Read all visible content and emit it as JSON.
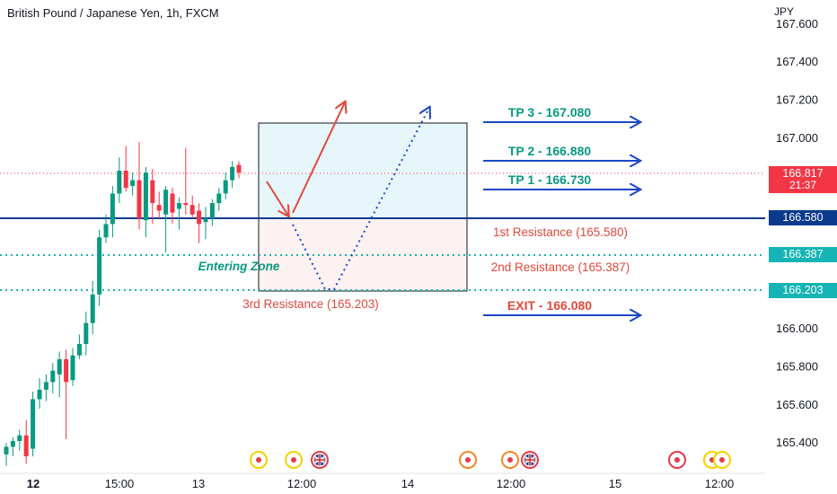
{
  "header": {
    "title": "British Pound / Japanese Yen, 1h, FXCM",
    "currency": "JPY"
  },
  "colors": {
    "up": "#089981",
    "down": "#f23645",
    "trend_line": "#0b3a8c",
    "dotted": "#16b4b4",
    "tp_arrow": "#1a47c8",
    "annotation_red": "#e0483c",
    "zone_fill": "#e6f6fb"
  },
  "chart_data": {
    "type": "candlestick",
    "ylim": [
      165.3,
      167.65
    ],
    "y_ticks": [
      "167.600",
      "167.400",
      "167.200",
      "167.000",
      "166.000",
      "165.800",
      "165.600",
      "165.400"
    ],
    "x_ticks": [
      "12",
      "15:00",
      "13",
      "12:00",
      "14",
      "12:00",
      "15",
      "12:00"
    ],
    "candles": [
      {
        "o": 165.34,
        "h": 165.4,
        "l": 165.28,
        "c": 165.38
      },
      {
        "o": 165.38,
        "h": 165.43,
        "l": 165.33,
        "c": 165.41
      },
      {
        "o": 165.41,
        "h": 165.47,
        "l": 165.36,
        "c": 165.44
      },
      {
        "o": 165.44,
        "h": 165.52,
        "l": 165.29,
        "c": 165.33
      },
      {
        "o": 165.37,
        "h": 165.67,
        "l": 165.33,
        "c": 165.63
      },
      {
        "o": 165.63,
        "h": 165.74,
        "l": 165.58,
        "c": 165.68
      },
      {
        "o": 165.68,
        "h": 165.76,
        "l": 165.62,
        "c": 165.72
      },
      {
        "o": 165.72,
        "h": 165.82,
        "l": 165.66,
        "c": 165.78
      },
      {
        "o": 165.76,
        "h": 165.88,
        "l": 165.64,
        "c": 165.84
      },
      {
        "o": 165.84,
        "h": 165.89,
        "l": 165.42,
        "c": 165.72
      },
      {
        "o": 165.73,
        "h": 165.9,
        "l": 165.7,
        "c": 165.86
      },
      {
        "o": 165.86,
        "h": 165.97,
        "l": 165.84,
        "c": 165.92
      },
      {
        "o": 165.92,
        "h": 166.09,
        "l": 165.86,
        "c": 166.03
      },
      {
        "o": 166.03,
        "h": 166.25,
        "l": 165.97,
        "c": 166.18
      },
      {
        "o": 166.18,
        "h": 166.52,
        "l": 166.12,
        "c": 166.48
      },
      {
        "o": 166.48,
        "h": 166.6,
        "l": 166.45,
        "c": 166.55
      },
      {
        "o": 166.55,
        "h": 166.75,
        "l": 166.48,
        "c": 166.71
      },
      {
        "o": 166.71,
        "h": 166.9,
        "l": 166.66,
        "c": 166.83
      },
      {
        "o": 166.83,
        "h": 166.96,
        "l": 166.72,
        "c": 166.74
      },
      {
        "o": 166.75,
        "h": 166.82,
        "l": 166.7,
        "c": 166.78
      },
      {
        "o": 166.78,
        "h": 166.98,
        "l": 166.52,
        "c": 166.58
      },
      {
        "o": 166.57,
        "h": 166.85,
        "l": 166.48,
        "c": 166.82
      },
      {
        "o": 166.78,
        "h": 166.84,
        "l": 166.55,
        "c": 166.66
      },
      {
        "o": 166.65,
        "h": 166.72,
        "l": 166.58,
        "c": 166.62
      },
      {
        "o": 166.6,
        "h": 166.75,
        "l": 166.4,
        "c": 166.73
      },
      {
        "o": 166.71,
        "h": 166.74,
        "l": 166.55,
        "c": 166.61
      },
      {
        "o": 166.63,
        "h": 166.69,
        "l": 166.52,
        "c": 166.66
      },
      {
        "o": 166.66,
        "h": 166.95,
        "l": 166.6,
        "c": 166.65
      },
      {
        "o": 166.65,
        "h": 166.7,
        "l": 166.58,
        "c": 166.6
      },
      {
        "o": 166.62,
        "h": 166.66,
        "l": 166.45,
        "c": 166.55
      },
      {
        "o": 166.56,
        "h": 166.64,
        "l": 166.47,
        "c": 166.58
      },
      {
        "o": 166.58,
        "h": 166.68,
        "l": 166.54,
        "c": 166.66
      },
      {
        "o": 166.66,
        "h": 166.74,
        "l": 166.62,
        "c": 166.71
      },
      {
        "o": 166.71,
        "h": 166.82,
        "l": 166.68,
        "c": 166.78
      },
      {
        "o": 166.78,
        "h": 166.88,
        "l": 166.74,
        "c": 166.85
      },
      {
        "o": 166.86,
        "h": 166.88,
        "l": 166.79,
        "c": 166.82
      }
    ],
    "current_price": {
      "value": 166.817,
      "label": "166.817",
      "countdown": "21:37"
    },
    "horizontal_levels": [
      {
        "value": 166.58,
        "label": "166.580",
        "style": "solid"
      },
      {
        "value": 166.387,
        "label": "166.387",
        "style": "dotted"
      },
      {
        "value": 166.203,
        "label": "166.203",
        "style": "dotted"
      }
    ],
    "zone": {
      "top": 167.08,
      "mid": 166.58,
      "bottom": 166.203,
      "label": "Entering Zone"
    },
    "resistances": [
      {
        "value": 165.58,
        "text": "1st Resistance (165.580)"
      },
      {
        "value": 165.387,
        "text": "2nd Resistance (165.387)"
      },
      {
        "value": 165.203,
        "text": "3rd Resistance  (165.203)"
      }
    ],
    "targets": [
      {
        "value": 167.08,
        "text": "TP 3 - 167.080"
      },
      {
        "value": 166.88,
        "text": "TP 2 - 166.880"
      },
      {
        "value": 166.73,
        "text": "TP 1 - 166.730"
      },
      {
        "value": 166.08,
        "text": "EXIT - 166.080"
      }
    ],
    "events": [
      {
        "kind": "dot",
        "ring": "#f5d000"
      },
      {
        "kind": "dot",
        "ring": "#f5d000"
      },
      {
        "kind": "flag"
      },
      {
        "kind": "dot",
        "ring": "#f08a24"
      },
      {
        "kind": "dot",
        "ring": "#f08a24"
      },
      {
        "kind": "flag"
      },
      {
        "kind": "dot",
        "ring": "#e23c4b"
      },
      {
        "kind": "dot",
        "ring": "#f5d000"
      },
      {
        "kind": "dot",
        "ring": "#f5d000"
      }
    ]
  }
}
